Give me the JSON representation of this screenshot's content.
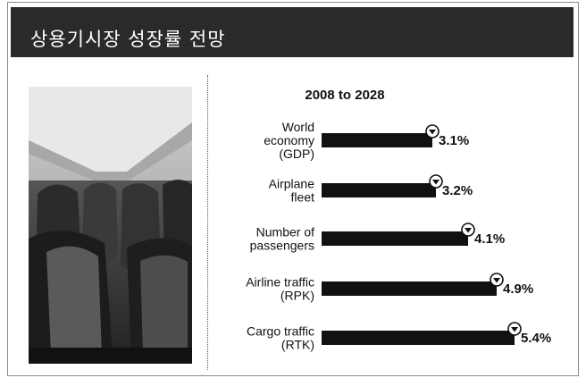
{
  "header": {
    "title": "상용기시장 성장률 전망"
  },
  "colors": {
    "bar": "#111111",
    "header_bg": "#2a2a2a",
    "header_text": "#ffffff"
  },
  "chart_data": {
    "type": "bar",
    "orientation": "horizontal",
    "title": "2008 to 2028",
    "categories": [
      [
        "World",
        "economy",
        "(GDP)"
      ],
      [
        "Airplane",
        "fleet"
      ],
      [
        "Number of",
        "passengers"
      ],
      [
        "Airline traffic",
        "(RPK)"
      ],
      [
        "Cargo traffic",
        "(RTK)"
      ]
    ],
    "values": [
      3.1,
      3.2,
      4.1,
      4.9,
      5.4
    ],
    "value_labels": [
      "3.1%",
      "3.2%",
      "4.1%",
      "4.9%",
      "5.4%"
    ],
    "xlim": [
      0,
      5.4
    ],
    "marker": "down-triangle-circle-icon",
    "grid": false,
    "legend": "none"
  }
}
